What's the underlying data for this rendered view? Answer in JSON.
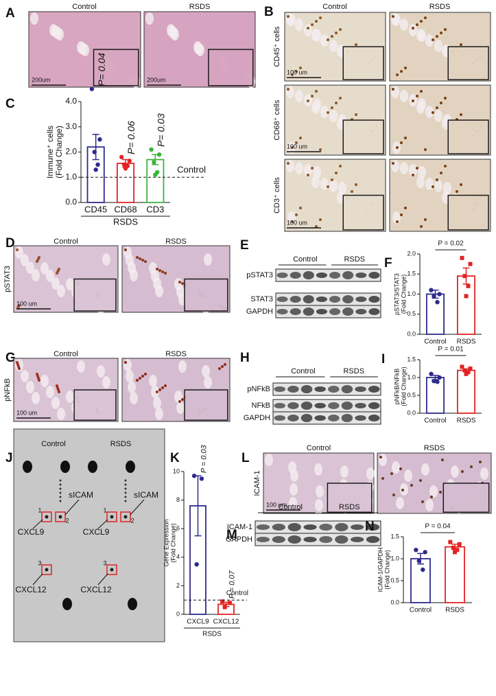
{
  "panels": {
    "A": {
      "letter": "A",
      "conditions": [
        "Control",
        "RSDS"
      ],
      "scale_bars": [
        "200um",
        "200um"
      ]
    },
    "B": {
      "letter": "B",
      "conditions": [
        "Control",
        "RSDS"
      ],
      "rows": [
        "CD45⁺ cells",
        "CD68⁺ cells",
        "CD3⁺ cells"
      ],
      "scale_bars": [
        "100 um",
        "100 um",
        "100 um"
      ]
    },
    "D": {
      "letter": "D",
      "conditions": [
        "Control",
        "RSDS"
      ],
      "stain": "pSTAT3",
      "scale_bar": "100 um"
    },
    "E": {
      "letter": "E",
      "groups": [
        "Control",
        "RSDS"
      ],
      "bands": [
        "pSTAT3",
        "STAT3",
        "GAPDH"
      ]
    },
    "G": {
      "letter": "G",
      "conditions": [
        "Control",
        "RSDS"
      ],
      "stain": "pNFkB",
      "scale_bar": "100 um"
    },
    "H": {
      "letter": "H",
      "groups": [
        "Control",
        "RSDS"
      ],
      "bands": [
        "pNFkB",
        "NFkB",
        "GAPDH"
      ]
    },
    "J": {
      "letter": "J",
      "conditions": [
        "Control",
        "RSDS"
      ],
      "arrays": [
        {
          "spots": [
            "CXCL9",
            "sICAM",
            "CXCL12"
          ],
          "box_numbers": [
            "1",
            "2",
            "3"
          ]
        },
        {
          "spots": [
            "CXCL9",
            "sICAM",
            "CXCL12"
          ],
          "box_numbers": [
            "1",
            "2",
            "3"
          ]
        }
      ]
    },
    "L": {
      "letter": "L",
      "conditions": [
        "Control",
        "RSDS"
      ],
      "stain": "ICAM-1",
      "scale_bar": "100 um"
    },
    "M": {
      "letter": "M",
      "groups": [
        "Control",
        "RSDS"
      ],
      "bands": [
        "ICAM-1",
        "GAPDH"
      ]
    }
  },
  "chart_data": [
    {
      "type": "bar",
      "letter": "C",
      "ylabel": [
        "Immune⁺ cells",
        "(Fold Change)"
      ],
      "categories": [
        "CD45",
        "CD68",
        "CD3"
      ],
      "group_label": "RSDS",
      "values": [
        2.2,
        1.55,
        1.7
      ],
      "errors": [
        0.5,
        0.15,
        0.2
      ],
      "points": [
        [
          4.5,
          2.5,
          2.0,
          1.5,
          1.3
        ],
        [
          1.8,
          1.65,
          1.5,
          1.45,
          1.35
        ],
        [
          2.1,
          1.9,
          1.6,
          1.2,
          1.1
        ]
      ],
      "colors": [
        "#2e2a8c",
        "#e32222",
        "#3cb33c"
      ],
      "annotations": [
        "P= 0.04",
        "P= 0.06",
        "P= 0.03"
      ],
      "reference": {
        "value": 1,
        "label": "Control"
      },
      "ylim": [
        0,
        4
      ],
      "yticks": [
        {
          "value": 0,
          "label": "0.0"
        },
        {
          "value": 1,
          "label": "1.0"
        },
        {
          "value": 2,
          "label": "2.0"
        },
        {
          "value": 3,
          "label": "3.0"
        },
        {
          "value": 4,
          "label": "4.0"
        }
      ]
    },
    {
      "type": "bar",
      "letter": "F",
      "ylabel": [
        "pSTAT3/STAT3",
        "(Fold Change)"
      ],
      "categories": [
        "Control",
        "RSDS"
      ],
      "values": [
        1.0,
        1.45
      ],
      "errors": [
        0.1,
        0.2
      ],
      "points": [
        [
          1.1,
          1.0,
          0.95,
          0.8
        ],
        [
          1.9,
          1.75,
          1.45,
          1.2,
          0.95
        ]
      ],
      "colors": [
        "#2e2a8c",
        "#e32222"
      ],
      "annotations": [
        "P = 0.02"
      ],
      "ylim": [
        0,
        2
      ],
      "yticks": [
        {
          "value": 0,
          "label": "0.0"
        },
        0.5,
        {
          "value": 1,
          "label": "1.0"
        },
        1.5,
        {
          "value": 2,
          "label": "2.0"
        }
      ]
    },
    {
      "type": "bar",
      "letter": "I",
      "ylabel": [
        "pNFkB/NFkB",
        "(Fold Change)"
      ],
      "categories": [
        "Control",
        "RSDS"
      ],
      "values": [
        1.0,
        1.2
      ],
      "errors": [
        0.06,
        0.04
      ],
      "points": [
        [
          1.1,
          1.0,
          0.9,
          0.88
        ],
        [
          1.3,
          1.25,
          1.2,
          1.15,
          1.1
        ]
      ],
      "colors": [
        "#2e2a8c",
        "#e32222"
      ],
      "annotations": [
        "P = 0.01"
      ],
      "ylim": [
        0,
        1.5
      ],
      "yticks": [
        {
          "value": 0,
          "label": "0.0"
        },
        0.5,
        {
          "value": 1,
          "label": "1.0"
        },
        1.5
      ]
    },
    {
      "type": "bar",
      "letter": "K",
      "ylabel": [
        "Gene Expression",
        "(Fold Change)"
      ],
      "categories": [
        "CXCL9",
        "CXCL12"
      ],
      "group_label": "RSDS",
      "values": [
        7.6,
        0.7
      ],
      "errors": [
        2.1,
        0.15
      ],
      "points": [
        [
          9.7,
          9.5,
          3.5
        ],
        [
          0.9,
          0.8,
          0.5
        ]
      ],
      "colors": [
        "#2e2a8c",
        "#e32222"
      ],
      "annotations": [
        "P = 0.03",
        "P = 0.07"
      ],
      "reference": {
        "value": 1,
        "label": "Control"
      },
      "ylim": [
        0,
        10
      ],
      "yticks": [
        0,
        2,
        4,
        6,
        8,
        10
      ]
    },
    {
      "type": "bar",
      "letter": "N",
      "ylabel": [
        "ICAM-1/GAPDH",
        "(Fold Change)"
      ],
      "categories": [
        "Control",
        "RSDS"
      ],
      "values": [
        1.0,
        1.27
      ],
      "errors": [
        0.12,
        0.06
      ],
      "points": [
        [
          1.2,
          1.15,
          0.95,
          0.75
        ],
        [
          1.38,
          1.33,
          1.25,
          1.2,
          1.15
        ]
      ],
      "colors": [
        "#2e2a8c",
        "#e32222"
      ],
      "annotations": [
        "P = 0.04"
      ],
      "ylim": [
        0,
        1.5
      ],
      "yticks": [
        {
          "value": 0,
          "label": "0.0"
        },
        0.5,
        {
          "value": 1,
          "label": "1.0"
        },
        1.5
      ]
    }
  ]
}
